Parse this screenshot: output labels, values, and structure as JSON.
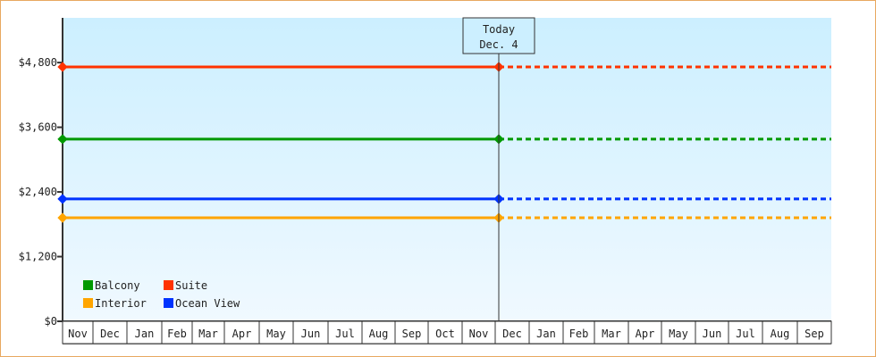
{
  "chart_data": {
    "type": "line",
    "x_tick_labels": [
      "Nov",
      "Dec",
      "Jan",
      "Feb",
      "Mar",
      "Apr",
      "May",
      "Jun",
      "Jul",
      "Aug",
      "Sep",
      "Oct",
      "Nov",
      "Dec",
      "Jan",
      "Feb",
      "Mar",
      "Apr",
      "May",
      "Jun",
      "Jul",
      "Aug",
      "Sep"
    ],
    "y_ticks": [
      0,
      1200,
      2400,
      3600,
      4800
    ],
    "y_tick_labels": [
      "$0",
      "$1,200",
      "$2,400",
      "$3,600",
      "$4,800"
    ],
    "ylim": [
      0,
      5630
    ],
    "today_marker": {
      "line1": "Today",
      "line2": "Dec. 4"
    },
    "legend_placement": "bottom-left",
    "series": [
      {
        "name": "Balcony",
        "color": "#009900",
        "value": 3380
      },
      {
        "name": "Suite",
        "color": "#ff3300",
        "value": 4720
      },
      {
        "name": "Interior",
        "color": "#ffa500",
        "value": 1920
      },
      {
        "name": "Ocean View",
        "color": "#0033ff",
        "value": 2270
      }
    ],
    "style": {
      "past": "solid",
      "future": "dotted",
      "background_gradient": [
        "#ccefff",
        "#f0f9ff"
      ]
    }
  }
}
